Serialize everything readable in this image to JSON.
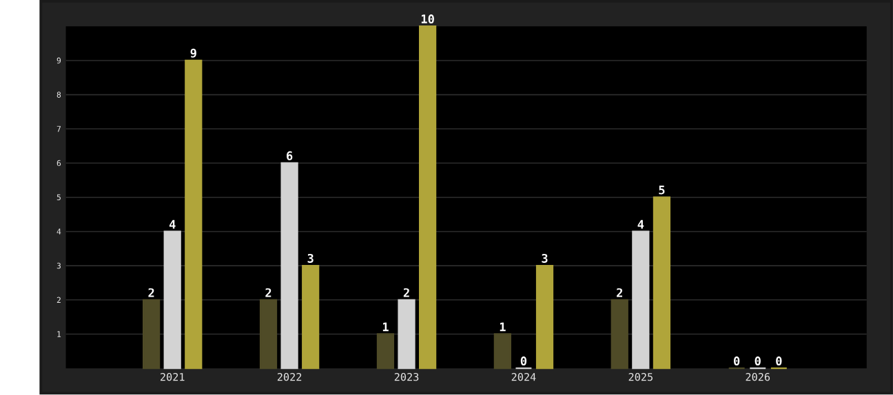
{
  "chart_data": {
    "type": "bar",
    "categories": [
      "2021",
      "2022",
      "2023",
      "2024",
      "2025",
      "2026"
    ],
    "series": [
      {
        "color": "#4f4b27",
        "values": [
          2,
          2,
          1,
          1,
          2,
          0
        ],
        "value_labels": [
          "2",
          "2",
          "1",
          "1",
          "2",
          "0"
        ]
      },
      {
        "color": "#d3d3d3",
        "values": [
          4,
          6,
          2,
          0,
          4,
          0
        ],
        "value_labels": [
          "4",
          "6",
          "2",
          "0",
          "4",
          "0"
        ]
      },
      {
        "color": "#b0a53a",
        "values": [
          9,
          3,
          10,
          3,
          5,
          0
        ],
        "value_labels": [
          "9",
          "3",
          "10",
          "3",
          "5",
          "0"
        ]
      }
    ],
    "ylim": [
      0,
      10
    ],
    "yticks": [
      1,
      2,
      3,
      4,
      5,
      6,
      7,
      8,
      9
    ],
    "grid": "y"
  }
}
